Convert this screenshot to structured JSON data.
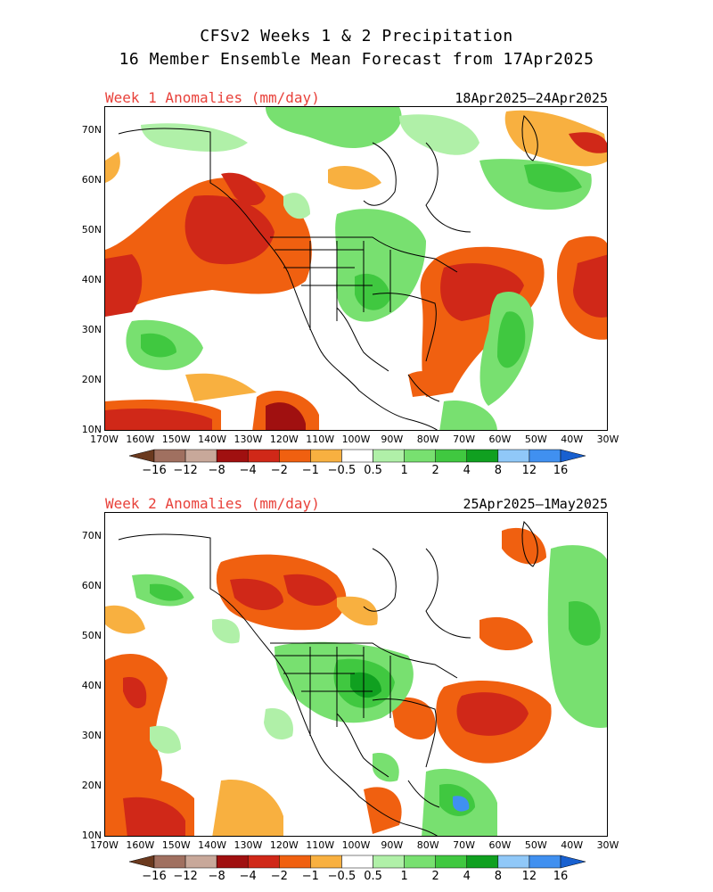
{
  "title_line1": "CFSv2 Weeks 1 & 2 Precipitation",
  "title_line2": "16 Member Ensemble Mean Forecast from 17Apr2025",
  "panels": [
    {
      "label": "Week 1 Anomalies (mm/day)",
      "dates": "18Apr2025–24Apr2025"
    },
    {
      "label": "Week 2 Anomalies (mm/day)",
      "dates": "25Apr2025–1May2025"
    }
  ],
  "lat_labels": [
    "70N",
    "60N",
    "50N",
    "40N",
    "30N",
    "20N",
    "10N"
  ],
  "lon_labels": [
    "170W",
    "160W",
    "150W",
    "140W",
    "130W",
    "120W",
    "110W",
    "100W",
    "90W",
    "80W",
    "70W",
    "60W",
    "50W",
    "40W",
    "30W"
  ],
  "colorbar": {
    "labels": [
      "−16",
      "−12",
      "−8",
      "−4",
      "−2",
      "−1",
      "−0.5",
      "0.5",
      "1",
      "2",
      "4",
      "8",
      "12",
      "16"
    ],
    "colors": [
      "#6b3a1f",
      "#a07060",
      "#c8a89a",
      "#a01010",
      "#d02818",
      "#f06010",
      "#f8b040",
      "#ffffff",
      "#b0f0a8",
      "#78e070",
      "#40c840",
      "#10a020",
      "#90c8f8",
      "#4090f0",
      "#1860d0"
    ]
  },
  "legend_colors": {
    "dry_strong": "#c01818",
    "dry_mod": "#f06010",
    "dry_weak": "#f8b040",
    "wet_weak": "#b0f0a8",
    "wet_mod": "#78e070",
    "wet_strong": "#30b830",
    "wet_vstrong": "#10a020",
    "wet_extreme": "#90c8f8",
    "wet_max": "#4090f0"
  }
}
